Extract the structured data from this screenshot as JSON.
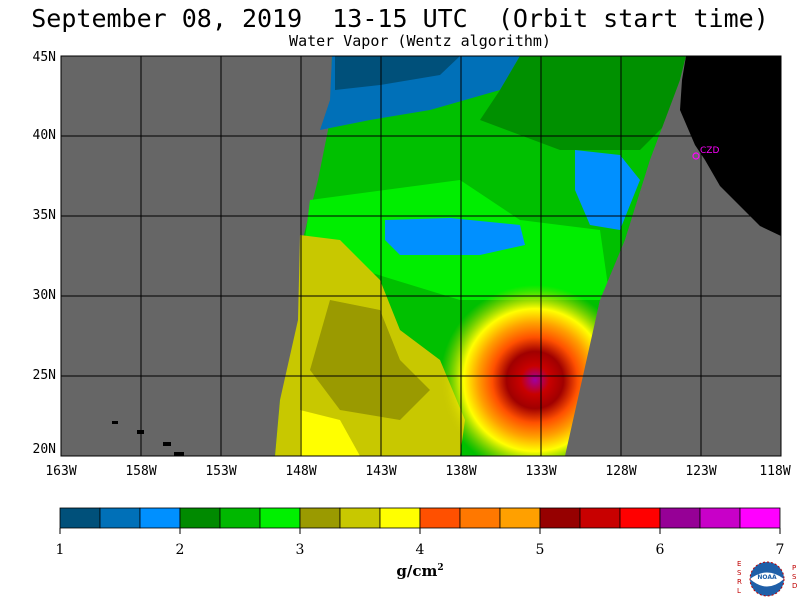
{
  "title": "September 08, 2019  13-15 UTC  (Orbit start time)",
  "subtitle": "Water Vapor (Wentz algorithm)",
  "lat_labels": [
    "45N",
    "40N",
    "35N",
    "30N",
    "25N",
    "20N"
  ],
  "lon_labels": [
    "163W",
    "158W",
    "153W",
    "148W",
    "143W",
    "138W",
    "133W",
    "128W",
    "123W",
    "118W"
  ],
  "station_label": "CZD",
  "colorbar": {
    "ticks": [
      "1",
      "2",
      "3",
      "4",
      "5",
      "6",
      "7"
    ],
    "units": "g/cm",
    "units_exp": "2",
    "colors": [
      "#00507a",
      "#0070b8",
      "#0090ff",
      "#008a00",
      "#00b800",
      "#00f000",
      "#9a9a00",
      "#c8c800",
      "#ffff00",
      "#ff5000",
      "#ff7800",
      "#ffa000",
      "#960000",
      "#c80000",
      "#ff0000",
      "#960096",
      "#c800c8",
      "#ff00ff"
    ]
  },
  "logo": {
    "left_letters": "ESRL",
    "right_letters": "PSD",
    "center": "NOAA"
  }
}
